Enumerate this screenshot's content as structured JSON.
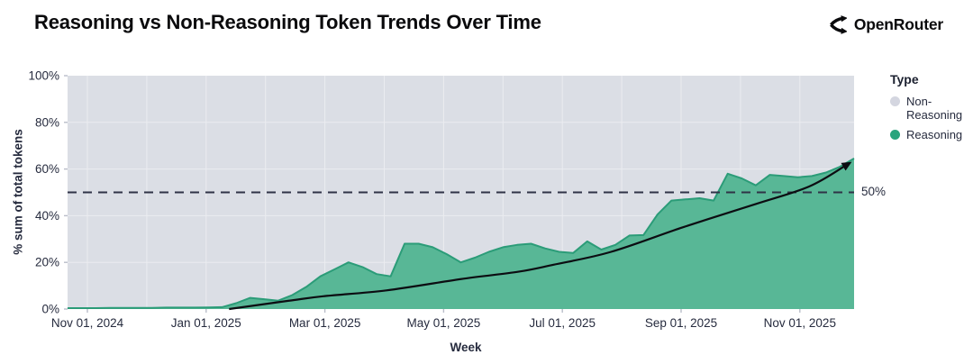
{
  "header": {
    "title": "Reasoning vs Non-Reasoning Token Trends Over Time",
    "brand": "OpenRouter"
  },
  "legend": {
    "title": "Type",
    "items": [
      {
        "label": "Non-Reasoning",
        "color": "#d4d6e0"
      },
      {
        "label": "Reasoning",
        "color": "#2aa47d"
      }
    ]
  },
  "chart_data": {
    "type": "area",
    "stacked_percent": true,
    "title": "Reasoning vs Non-Reasoning Token Trends Over Time",
    "xlabel": "Week",
    "ylabel": "% sum of total tokens",
    "ylim": [
      0,
      100
    ],
    "grid": "subtle white monthly verticals and 20%-step horizontals",
    "legend_position": "right",
    "ytick_values": [
      0,
      20,
      40,
      60,
      80,
      100
    ],
    "ytick_labels": [
      "0%",
      "20%",
      "40%",
      "60%",
      "80%",
      "100%"
    ],
    "xtick_labels": [
      "Nov 01, 2024",
      "Jan 01, 2025",
      "Mar 01, 2025",
      "May 01, 2025",
      "Jul 01, 2025",
      "Sep 01, 2025",
      "Nov 01, 2025"
    ],
    "series": [
      {
        "name": "Reasoning",
        "fill": "#58b796",
        "stroke": "#2b9c78",
        "unit": "% of total tokens, weekly",
        "values": [
          0.4,
          0.4,
          0.4,
          0.5,
          0.5,
          0.5,
          0.5,
          0.6,
          0.6,
          0.6,
          0.7,
          0.8,
          2.5,
          4.8,
          4.2,
          3.6,
          6,
          9.5,
          14,
          17,
          20,
          18,
          15,
          14,
          28,
          28,
          26.5,
          23.5,
          20,
          22,
          24.5,
          26.5,
          27.5,
          28,
          26,
          24.5,
          24,
          29,
          25.5,
          27.5,
          31.5,
          31.7,
          40.5,
          46.5,
          47,
          47.5,
          46.5,
          58,
          56,
          53,
          57.5,
          57,
          56.5,
          57,
          58.5,
          61,
          64.5
        ]
      },
      {
        "name": "Non-Reasoning",
        "fill": "#dbdee5",
        "values_note": "100 minus Reasoning at every week (100% stacked share chart)"
      }
    ],
    "reference_line": {
      "value": 50,
      "label": "50%",
      "style": "dashed",
      "color": "#2f3347"
    },
    "trend_arrow": {
      "description": "smooth black growth-trend curve ending in an arrowhead",
      "color": "#0c0d12",
      "points_week_pct": [
        [
          11.5,
          0
        ],
        [
          15.7,
          3.5
        ],
        [
          18.2,
          5.5
        ],
        [
          22.7,
          8
        ],
        [
          28.2,
          13
        ],
        [
          32.1,
          16
        ],
        [
          34.6,
          19
        ],
        [
          38.7,
          24.5
        ],
        [
          43.8,
          35
        ],
        [
          49,
          45
        ],
        [
          52.8,
          52.5
        ],
        [
          55.4,
          61.5
        ]
      ]
    }
  }
}
